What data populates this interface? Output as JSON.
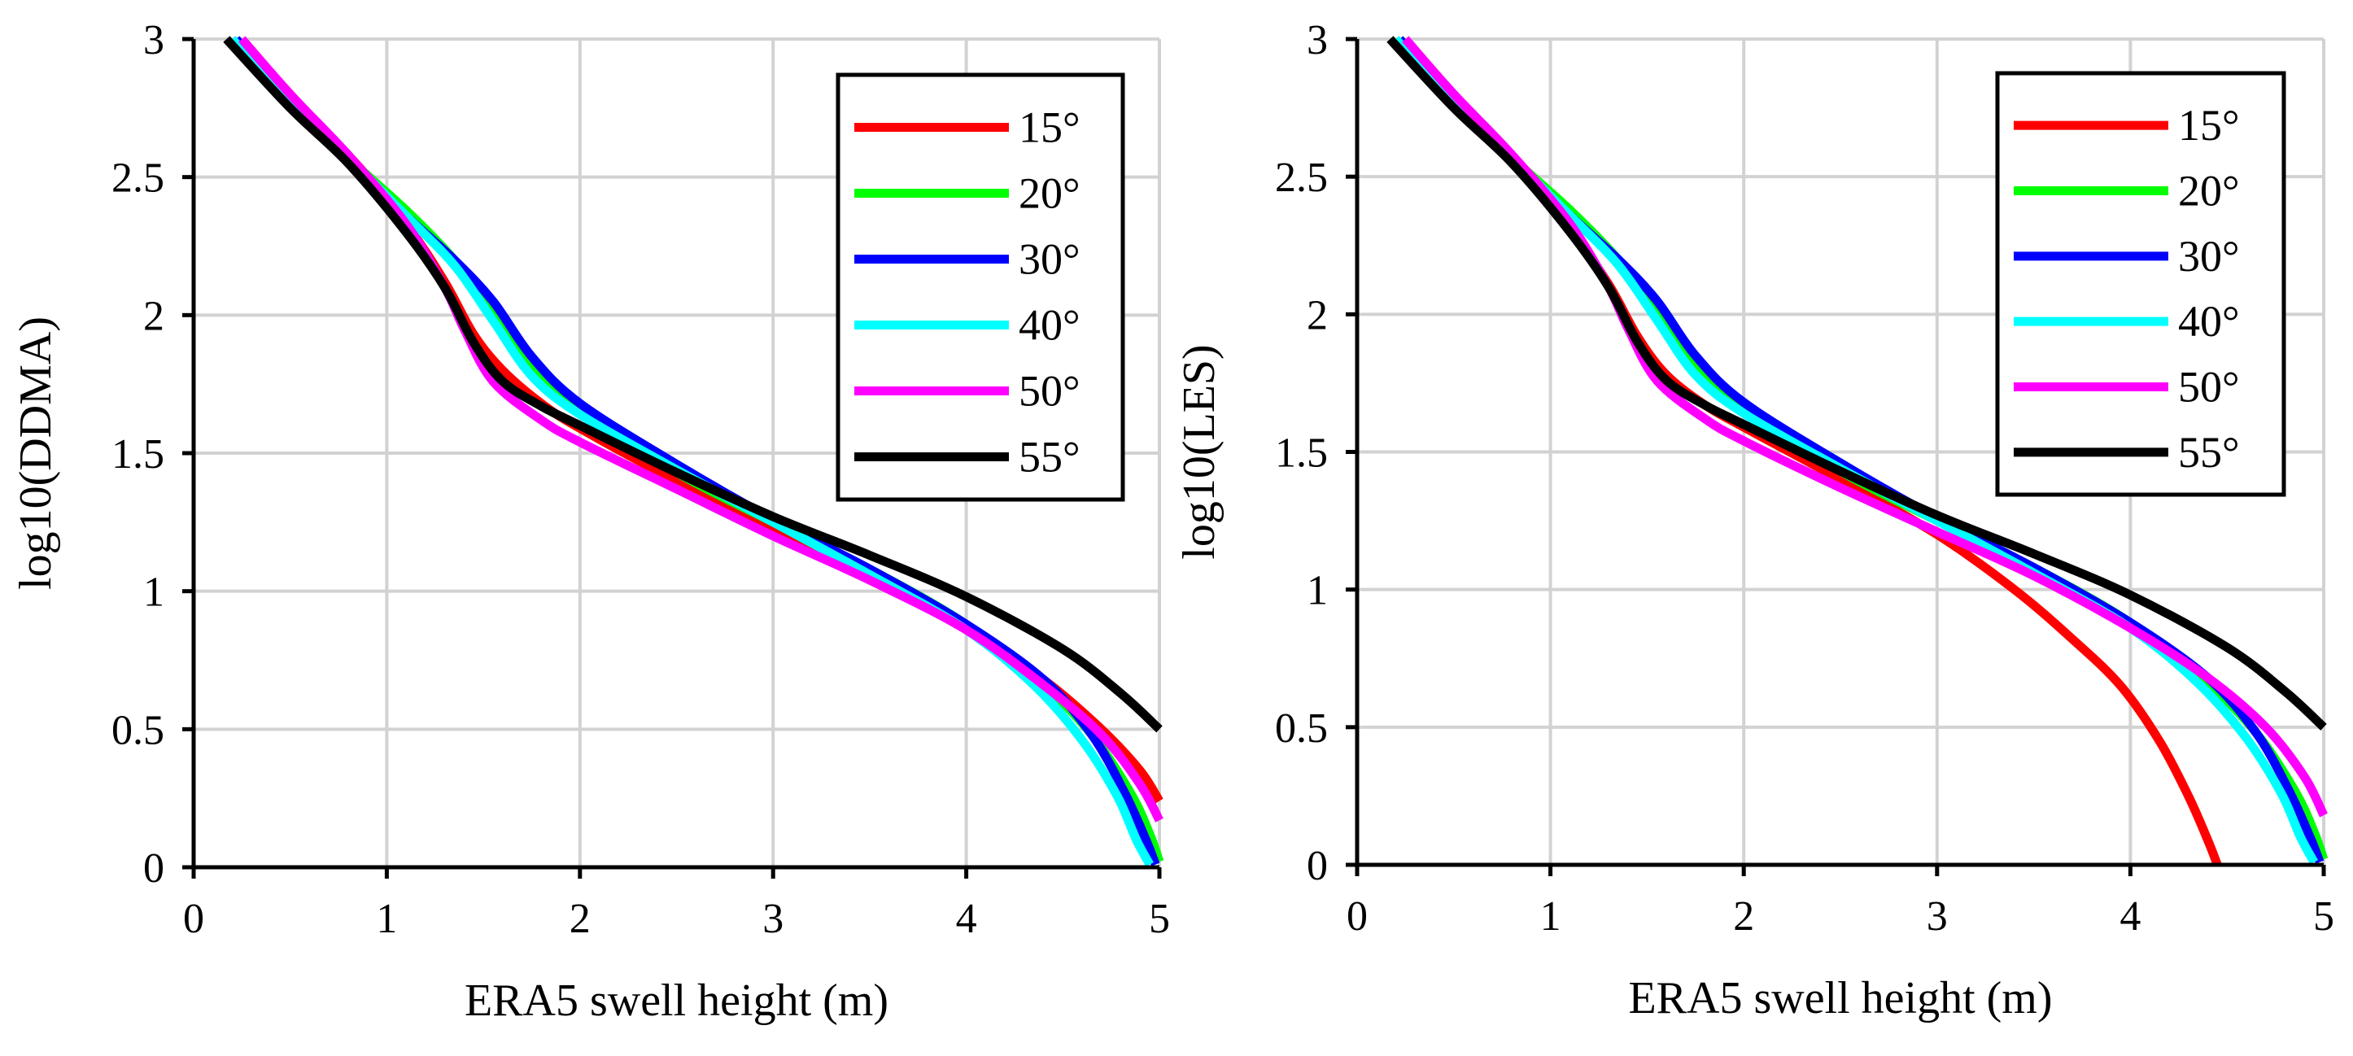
{
  "chart_data": [
    {
      "type": "line",
      "title": "",
      "xlabel": "ERA5 swell height (m)",
      "ylabel": "log10(DDMA)",
      "xlim": [
        0,
        5
      ],
      "ylim": [
        0,
        3
      ],
      "xticks": [
        "0",
        "1",
        "2",
        "3",
        "4",
        "5"
      ],
      "yticks": [
        "0",
        "0.5",
        "1",
        "1.5",
        "2",
        "2.5",
        "3"
      ],
      "grid": true,
      "legend_position": "top-right",
      "series": [
        {
          "name": "15°",
          "color": "#ff0000",
          "x": [
            0.2,
            0.5,
            0.8,
            1.1,
            1.3,
            1.45,
            1.6,
            1.8,
            2.0,
            2.5,
            3.0,
            3.5,
            4.0,
            4.4,
            4.7,
            4.9,
            5.0
          ],
          "y": [
            3.0,
            2.78,
            2.58,
            2.33,
            2.12,
            1.93,
            1.8,
            1.68,
            1.59,
            1.4,
            1.23,
            1.06,
            0.87,
            0.68,
            0.5,
            0.35,
            0.24
          ]
        },
        {
          "name": "20°",
          "color": "#00ff00",
          "x": [
            0.22,
            0.5,
            0.8,
            1.1,
            1.35,
            1.55,
            1.75,
            2.0,
            2.5,
            3.0,
            3.5,
            4.0,
            4.4,
            4.65,
            4.85,
            4.95,
            5.0
          ],
          "y": [
            3.0,
            2.78,
            2.57,
            2.38,
            2.2,
            2.02,
            1.82,
            1.65,
            1.43,
            1.25,
            1.08,
            0.88,
            0.66,
            0.48,
            0.27,
            0.12,
            0.02
          ]
        },
        {
          "name": "30°",
          "color": "#0000ff",
          "x": [
            0.22,
            0.5,
            0.8,
            1.1,
            1.35,
            1.55,
            1.75,
            2.0,
            2.5,
            3.0,
            3.5,
            4.0,
            4.4,
            4.65,
            4.82,
            4.93,
            4.98
          ],
          "y": [
            3.0,
            2.78,
            2.57,
            2.36,
            2.2,
            2.05,
            1.85,
            1.68,
            1.46,
            1.26,
            1.08,
            0.88,
            0.68,
            0.48,
            0.27,
            0.1,
            0.01
          ]
        },
        {
          "name": "40°",
          "color": "#00ffff",
          "x": [
            0.2,
            0.5,
            0.8,
            1.1,
            1.35,
            1.55,
            1.75,
            2.0,
            2.5,
            3.0,
            3.5,
            4.0,
            4.35,
            4.6,
            4.78,
            4.88,
            4.95
          ],
          "y": [
            3.0,
            2.78,
            2.57,
            2.36,
            2.18,
            1.98,
            1.78,
            1.64,
            1.44,
            1.25,
            1.06,
            0.86,
            0.66,
            0.46,
            0.26,
            0.1,
            0.01
          ]
        },
        {
          "name": "50°",
          "color": "#ff00ff",
          "x": [
            0.25,
            0.5,
            0.8,
            1.1,
            1.3,
            1.4,
            1.55,
            1.8,
            2.0,
            2.5,
            3.0,
            3.5,
            4.0,
            4.4,
            4.7,
            4.9,
            5.0
          ],
          "y": [
            3.0,
            2.8,
            2.58,
            2.33,
            2.1,
            1.95,
            1.76,
            1.62,
            1.54,
            1.37,
            1.2,
            1.04,
            0.86,
            0.66,
            0.48,
            0.3,
            0.17
          ]
        },
        {
          "name": "55°",
          "color": "#000000",
          "x": [
            0.17,
            0.5,
            0.8,
            1.1,
            1.3,
            1.45,
            1.6,
            1.8,
            2.0,
            2.5,
            3.0,
            3.5,
            4.0,
            4.5,
            4.8,
            5.0
          ],
          "y": [
            3.0,
            2.75,
            2.55,
            2.3,
            2.1,
            1.9,
            1.76,
            1.67,
            1.6,
            1.43,
            1.27,
            1.13,
            0.98,
            0.79,
            0.63,
            0.5
          ]
        }
      ]
    },
    {
      "type": "line",
      "title": "",
      "xlabel": "ERA5 swell height (m)",
      "ylabel": "log10(LES)",
      "xlim": [
        0,
        5
      ],
      "ylim": [
        0,
        3
      ],
      "xticks": [
        "0",
        "1",
        "2",
        "3",
        "4",
        "5"
      ],
      "yticks": [
        "0",
        "0.5",
        "1",
        "1.5",
        "2",
        "2.5",
        "3"
      ],
      "grid": true,
      "legend_position": "top-right",
      "series": [
        {
          "name": "15°",
          "color": "#ff0000",
          "x": [
            0.22,
            0.5,
            0.8,
            1.1,
            1.3,
            1.45,
            1.6,
            1.8,
            2.0,
            2.5,
            3.0,
            3.4,
            3.7,
            3.95,
            4.15,
            4.3,
            4.4,
            4.45
          ],
          "y": [
            3.0,
            2.76,
            2.56,
            2.31,
            2.11,
            1.92,
            1.78,
            1.67,
            1.59,
            1.4,
            1.2,
            1.0,
            0.82,
            0.65,
            0.45,
            0.25,
            0.09,
            0.0
          ]
        },
        {
          "name": "20°",
          "color": "#00ff00",
          "x": [
            0.22,
            0.5,
            0.8,
            1.1,
            1.35,
            1.55,
            1.75,
            2.0,
            2.5,
            3.0,
            3.5,
            4.0,
            4.4,
            4.65,
            4.85,
            4.95,
            5.0
          ],
          "y": [
            3.0,
            2.78,
            2.57,
            2.38,
            2.2,
            2.02,
            1.82,
            1.65,
            1.43,
            1.25,
            1.08,
            0.88,
            0.66,
            0.48,
            0.27,
            0.12,
            0.02
          ]
        },
        {
          "name": "30°",
          "color": "#0000ff",
          "x": [
            0.22,
            0.5,
            0.8,
            1.1,
            1.35,
            1.55,
            1.75,
            2.0,
            2.5,
            3.0,
            3.5,
            4.0,
            4.4,
            4.65,
            4.82,
            4.93,
            4.98
          ],
          "y": [
            3.0,
            2.78,
            2.57,
            2.36,
            2.2,
            2.05,
            1.85,
            1.68,
            1.46,
            1.26,
            1.08,
            0.88,
            0.68,
            0.48,
            0.27,
            0.1,
            0.01
          ]
        },
        {
          "name": "40°",
          "color": "#00ffff",
          "x": [
            0.2,
            0.5,
            0.8,
            1.1,
            1.35,
            1.55,
            1.75,
            2.0,
            2.5,
            3.0,
            3.5,
            4.0,
            4.35,
            4.6,
            4.78,
            4.88,
            4.95
          ],
          "y": [
            3.0,
            2.78,
            2.57,
            2.36,
            2.18,
            1.98,
            1.78,
            1.64,
            1.44,
            1.25,
            1.06,
            0.86,
            0.66,
            0.46,
            0.26,
            0.1,
            0.01
          ]
        },
        {
          "name": "50°",
          "color": "#ff00ff",
          "x": [
            0.25,
            0.5,
            0.8,
            1.1,
            1.3,
            1.4,
            1.55,
            1.8,
            2.0,
            2.5,
            3.0,
            3.5,
            4.0,
            4.4,
            4.7,
            4.9,
            5.0
          ],
          "y": [
            3.0,
            2.8,
            2.58,
            2.33,
            2.1,
            1.95,
            1.76,
            1.62,
            1.54,
            1.37,
            1.21,
            1.05,
            0.86,
            0.68,
            0.5,
            0.32,
            0.18
          ]
        },
        {
          "name": "55°",
          "color": "#000000",
          "x": [
            0.17,
            0.5,
            0.8,
            1.1,
            1.3,
            1.45,
            1.6,
            1.8,
            2.0,
            2.5,
            3.0,
            3.5,
            4.0,
            4.5,
            4.8,
            5.0
          ],
          "y": [
            3.0,
            2.75,
            2.55,
            2.3,
            2.1,
            1.9,
            1.76,
            1.67,
            1.6,
            1.43,
            1.27,
            1.13,
            0.98,
            0.79,
            0.63,
            0.5
          ]
        }
      ]
    }
  ]
}
